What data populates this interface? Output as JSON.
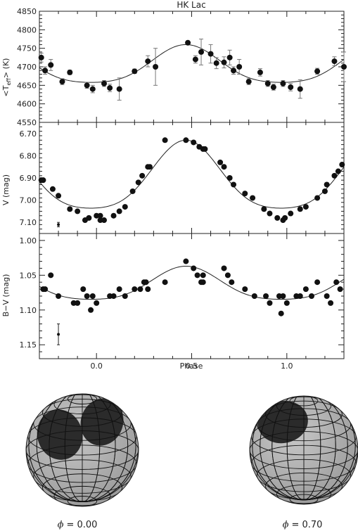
{
  "chart_data": [
    {
      "type": "scatter",
      "title": "HK Lac",
      "ylabel_main": "<T",
      "ylabel_sub": "eff",
      "ylabel_end": "> (K)",
      "xlim": [
        -0.3,
        1.3
      ],
      "ylim": [
        4550,
        4850
      ],
      "yticks": [
        "4550",
        "4600",
        "4650",
        "4700",
        "4750",
        "4800",
        "4850"
      ],
      "points": [
        [
          -0.29,
          4725,
          12
        ],
        [
          -0.27,
          4690,
          10
        ],
        [
          -0.24,
          4705,
          15
        ],
        [
          -0.18,
          4660,
          8
        ],
        [
          -0.14,
          4685,
          6
        ],
        [
          -0.05,
          4650,
          8
        ],
        [
          -0.02,
          4640,
          10
        ],
        [
          0.04,
          4655,
          8
        ],
        [
          0.07,
          4643,
          10
        ],
        [
          0.12,
          4640,
          30
        ],
        [
          0.2,
          4688,
          6
        ],
        [
          0.27,
          4715,
          15
        ],
        [
          0.31,
          4700,
          50
        ],
        [
          0.48,
          4765,
          5
        ],
        [
          0.52,
          4720,
          10
        ],
        [
          0.55,
          4740,
          35
        ],
        [
          0.6,
          4735,
          25
        ],
        [
          0.63,
          4710,
          15
        ],
        [
          0.67,
          4712,
          15
        ],
        [
          0.7,
          4725,
          20
        ],
        [
          0.72,
          4690,
          10
        ],
        [
          0.75,
          4700,
          20
        ],
        [
          0.8,
          4660,
          8
        ],
        [
          0.86,
          4685,
          10
        ],
        [
          0.9,
          4655,
          8
        ],
        [
          0.93,
          4645,
          8
        ],
        [
          0.98,
          4655,
          8
        ],
        [
          1.02,
          4645,
          10
        ],
        [
          1.07,
          4640,
          25
        ],
        [
          1.16,
          4688,
          8
        ],
        [
          1.25,
          4715,
          12
        ],
        [
          1.3,
          4700,
          40
        ]
      ],
      "model": {
        "mean": 4700,
        "amp": 60,
        "phase": 0.47
      }
    },
    {
      "type": "scatter",
      "ylabel": "V (mag)",
      "xlim": [
        -0.3,
        1.3
      ],
      "ylim": [
        7.15,
        6.65
      ],
      "yticks": [
        "6.70",
        "6.80",
        "6.90",
        "7.00",
        "7.10"
      ],
      "points": [
        [
          -0.29,
          6.91
        ],
        [
          -0.28,
          6.91
        ],
        [
          -0.23,
          6.95
        ],
        [
          -0.2,
          6.98
        ],
        [
          -0.14,
          7.04
        ],
        [
          -0.1,
          7.05
        ],
        [
          -0.06,
          7.09
        ],
        [
          -0.04,
          7.08
        ],
        [
          0.0,
          7.07
        ],
        [
          0.02,
          7.09
        ],
        [
          0.02,
          7.07
        ],
        [
          0.04,
          7.09
        ],
        [
          0.09,
          7.07
        ],
        [
          0.12,
          7.05
        ],
        [
          0.15,
          7.03
        ],
        [
          0.19,
          6.96
        ],
        [
          0.22,
          6.92
        ],
        [
          0.24,
          6.89
        ],
        [
          0.27,
          6.85
        ],
        [
          0.28,
          6.85
        ],
        [
          0.36,
          6.73
        ],
        [
          0.47,
          6.73
        ],
        [
          0.51,
          6.74
        ],
        [
          0.54,
          6.76
        ],
        [
          0.56,
          6.77
        ],
        [
          0.57,
          6.77
        ],
        [
          0.65,
          6.83
        ],
        [
          0.67,
          6.85
        ],
        [
          0.7,
          6.9
        ],
        [
          0.72,
          6.93
        ],
        [
          0.78,
          6.97
        ],
        [
          0.82,
          6.99
        ],
        [
          0.88,
          7.04
        ],
        [
          0.91,
          7.06
        ],
        [
          0.95,
          7.08
        ],
        [
          0.98,
          7.09
        ],
        [
          0.99,
          7.08
        ],
        [
          1.02,
          7.06
        ],
        [
          1.07,
          7.04
        ],
        [
          1.1,
          7.03
        ],
        [
          1.16,
          6.99
        ],
        [
          1.2,
          6.96
        ],
        [
          1.21,
          6.93
        ],
        [
          1.25,
          6.89
        ],
        [
          1.27,
          6.87
        ],
        [
          1.29,
          6.84
        ]
      ],
      "model": {
        "mean": 6.91,
        "amp": 0.18,
        "phase": 0.47,
        "inverted": true
      },
      "error_bar": {
        "x": -0.2,
        "y": 7.11,
        "err": 0.01
      }
    },
    {
      "type": "scatter",
      "ylabel": "B−V (mag)",
      "xlabel": "Phase",
      "xlim": [
        -0.3,
        1.3
      ],
      "ylim": [
        1.17,
        0.99
      ],
      "yticks": [
        "1.00",
        "1.05",
        "1.10",
        "1.15"
      ],
      "xticks": [
        "0.0",
        "0.5",
        "1.0"
      ],
      "points": [
        [
          -0.28,
          1.07
        ],
        [
          -0.27,
          1.07
        ],
        [
          -0.24,
          1.05
        ],
        [
          -0.2,
          1.08
        ],
        [
          -0.12,
          1.09
        ],
        [
          -0.1,
          1.09
        ],
        [
          -0.07,
          1.07
        ],
        [
          -0.05,
          1.08
        ],
        [
          -0.03,
          1.1
        ],
        [
          -0.02,
          1.08
        ],
        [
          0.0,
          1.09
        ],
        [
          0.07,
          1.08
        ],
        [
          0.09,
          1.08
        ],
        [
          0.12,
          1.07
        ],
        [
          0.15,
          1.08
        ],
        [
          0.2,
          1.07
        ],
        [
          0.23,
          1.07
        ],
        [
          0.25,
          1.06
        ],
        [
          0.26,
          1.06
        ],
        [
          0.27,
          1.07
        ],
        [
          0.36,
          1.06
        ],
        [
          0.47,
          1.03
        ],
        [
          0.51,
          1.04
        ],
        [
          0.53,
          1.05
        ],
        [
          0.55,
          1.06
        ],
        [
          0.56,
          1.06
        ],
        [
          0.56,
          1.05
        ],
        [
          0.67,
          1.04
        ],
        [
          0.69,
          1.05
        ],
        [
          0.71,
          1.06
        ],
        [
          0.78,
          1.07
        ],
        [
          0.83,
          1.08
        ],
        [
          0.89,
          1.08
        ],
        [
          0.91,
          1.09
        ],
        [
          0.96,
          1.08
        ],
        [
          0.98,
          1.08
        ],
        [
          1.0,
          1.09
        ],
        [
          1.05,
          1.08
        ],
        [
          1.07,
          1.08
        ],
        [
          1.1,
          1.07
        ],
        [
          1.13,
          1.08
        ],
        [
          1.16,
          1.06
        ],
        [
          1.21,
          1.08
        ],
        [
          1.23,
          1.09
        ],
        [
          1.26,
          1.06
        ],
        [
          1.28,
          1.07
        ]
      ],
      "outlier": [
        0.97,
        1.105
      ],
      "model": {
        "mean": 1.065,
        "amp": 0.028,
        "phase": 0.47,
        "inverted": true
      },
      "error_bar": {
        "x": -0.2,
        "y": 1.135,
        "err": 0.015
      }
    }
  ],
  "spheres": [
    {
      "label_symbol": "ϕ",
      "label_value": "=  0.00"
    },
    {
      "label_symbol": "ϕ",
      "label_value": "=  0.70"
    }
  ],
  "colors": {
    "sphere": "#9a9a9a",
    "spot": "#2b2b2b",
    "grid": "#111111"
  }
}
